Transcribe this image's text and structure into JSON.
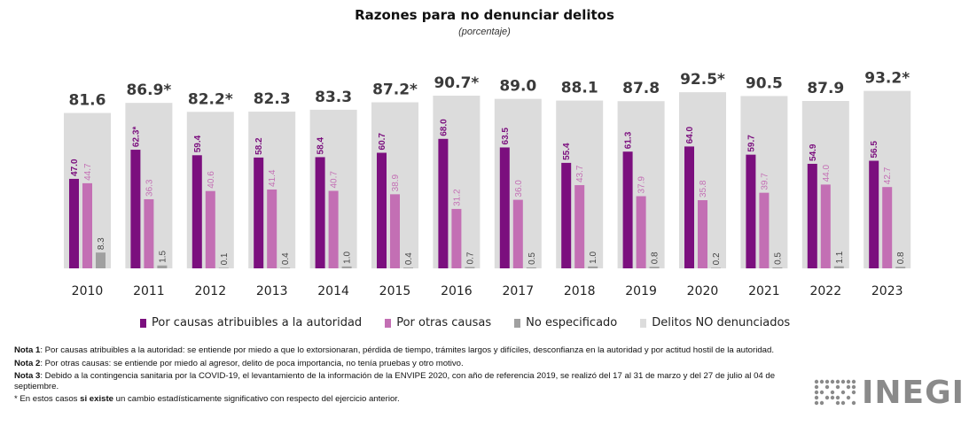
{
  "chart_data": {
    "type": "bar",
    "title": "Razones para no denunciar delitos",
    "subtitle": "(porcentaje)",
    "categories": [
      "2010",
      "2011",
      "2012",
      "2013",
      "2014",
      "2015",
      "2016",
      "2017",
      "2018",
      "2019",
      "2020",
      "2021",
      "2022",
      "2023"
    ],
    "total_labels": [
      "81.6",
      "86.9*",
      "82.2*",
      "82.3",
      "83.3",
      "87.2*",
      "90.7*",
      "89.0",
      "88.1",
      "87.8",
      "92.5*",
      "90.5",
      "87.9",
      "93.2*"
    ],
    "series": [
      {
        "name": "Por causas atribuibles a la autoridad",
        "color": "#7b0f7e",
        "values": [
          47.0,
          62.3,
          59.4,
          58.2,
          58.4,
          60.7,
          68.0,
          63.5,
          55.4,
          61.3,
          64.0,
          59.7,
          54.9,
          56.5
        ],
        "labels": [
          "47.0",
          "62.3*",
          "59.4",
          "58.2",
          "58.4",
          "60.7",
          "68.0",
          "63.5",
          "55.4",
          "61.3",
          "64.0",
          "59.7",
          "54.9",
          "56.5"
        ]
      },
      {
        "name": "Por otras causas",
        "color": "#c36fb4",
        "values": [
          44.7,
          36.3,
          40.6,
          41.4,
          40.7,
          38.9,
          31.2,
          36.0,
          43.7,
          37.9,
          35.8,
          39.7,
          44.0,
          42.7
        ],
        "labels": [
          "44.7",
          "36.3",
          "40.6",
          "41.4",
          "40.7",
          "38.9",
          "31.2",
          "36.0",
          "43.7",
          "37.9",
          "35.8",
          "39.7",
          "44.0",
          "42.7"
        ]
      },
      {
        "name": "No especificado",
        "color": "#a0a0a0",
        "values": [
          8.3,
          1.5,
          0.1,
          0.4,
          1.0,
          0.4,
          0.7,
          0.5,
          1.0,
          0.8,
          0.2,
          0.5,
          1.1,
          0.8
        ],
        "labels": [
          "8.3",
          "1.5",
          "0.1",
          "0.4",
          "1.0",
          "0.4",
          "0.7",
          "0.5",
          "1.0",
          "0.8",
          "0.2",
          "0.5",
          "1.1",
          "0.8"
        ]
      },
      {
        "name": "Delitos NO denunciados",
        "color": "#dcdcdc",
        "values": [
          81.6,
          86.9,
          82.2,
          82.3,
          83.3,
          87.2,
          90.7,
          89.0,
          88.1,
          87.8,
          92.5,
          90.5,
          87.9,
          93.2
        ]
      }
    ]
  },
  "notes": [
    {
      "label": "Nota 1",
      "text": ": Por causas atribuibles a la autoridad: se entiende por miedo a que lo extorsionaran, pérdida de tiempo, trámites largos y difíciles, desconfianza en la autoridad y por actitud hostil de la autoridad."
    },
    {
      "label": "Nota 2",
      "text": ": Por otras causas: se entiende por miedo al agresor, delito de poca importancia, no tenía pruebas y otro motivo."
    },
    {
      "label": "Nota 3",
      "text": ": Debido a la contingencia sanitaria por la COVID-19, el levantamiento de la información de la ENVIPE 2020, con año de referencia 2019, se realizó del 17 al 31 de marzo y del 27 de julio al 04 de septiembre."
    }
  ],
  "footnote": {
    "prefix": "* En estos casos ",
    "bold": "si existe",
    "suffix": " un cambio estadísticamente significativo con respecto del ejercicio anterior."
  },
  "logo": {
    "text": "INEGI",
    "color": "#8a8a8a"
  }
}
